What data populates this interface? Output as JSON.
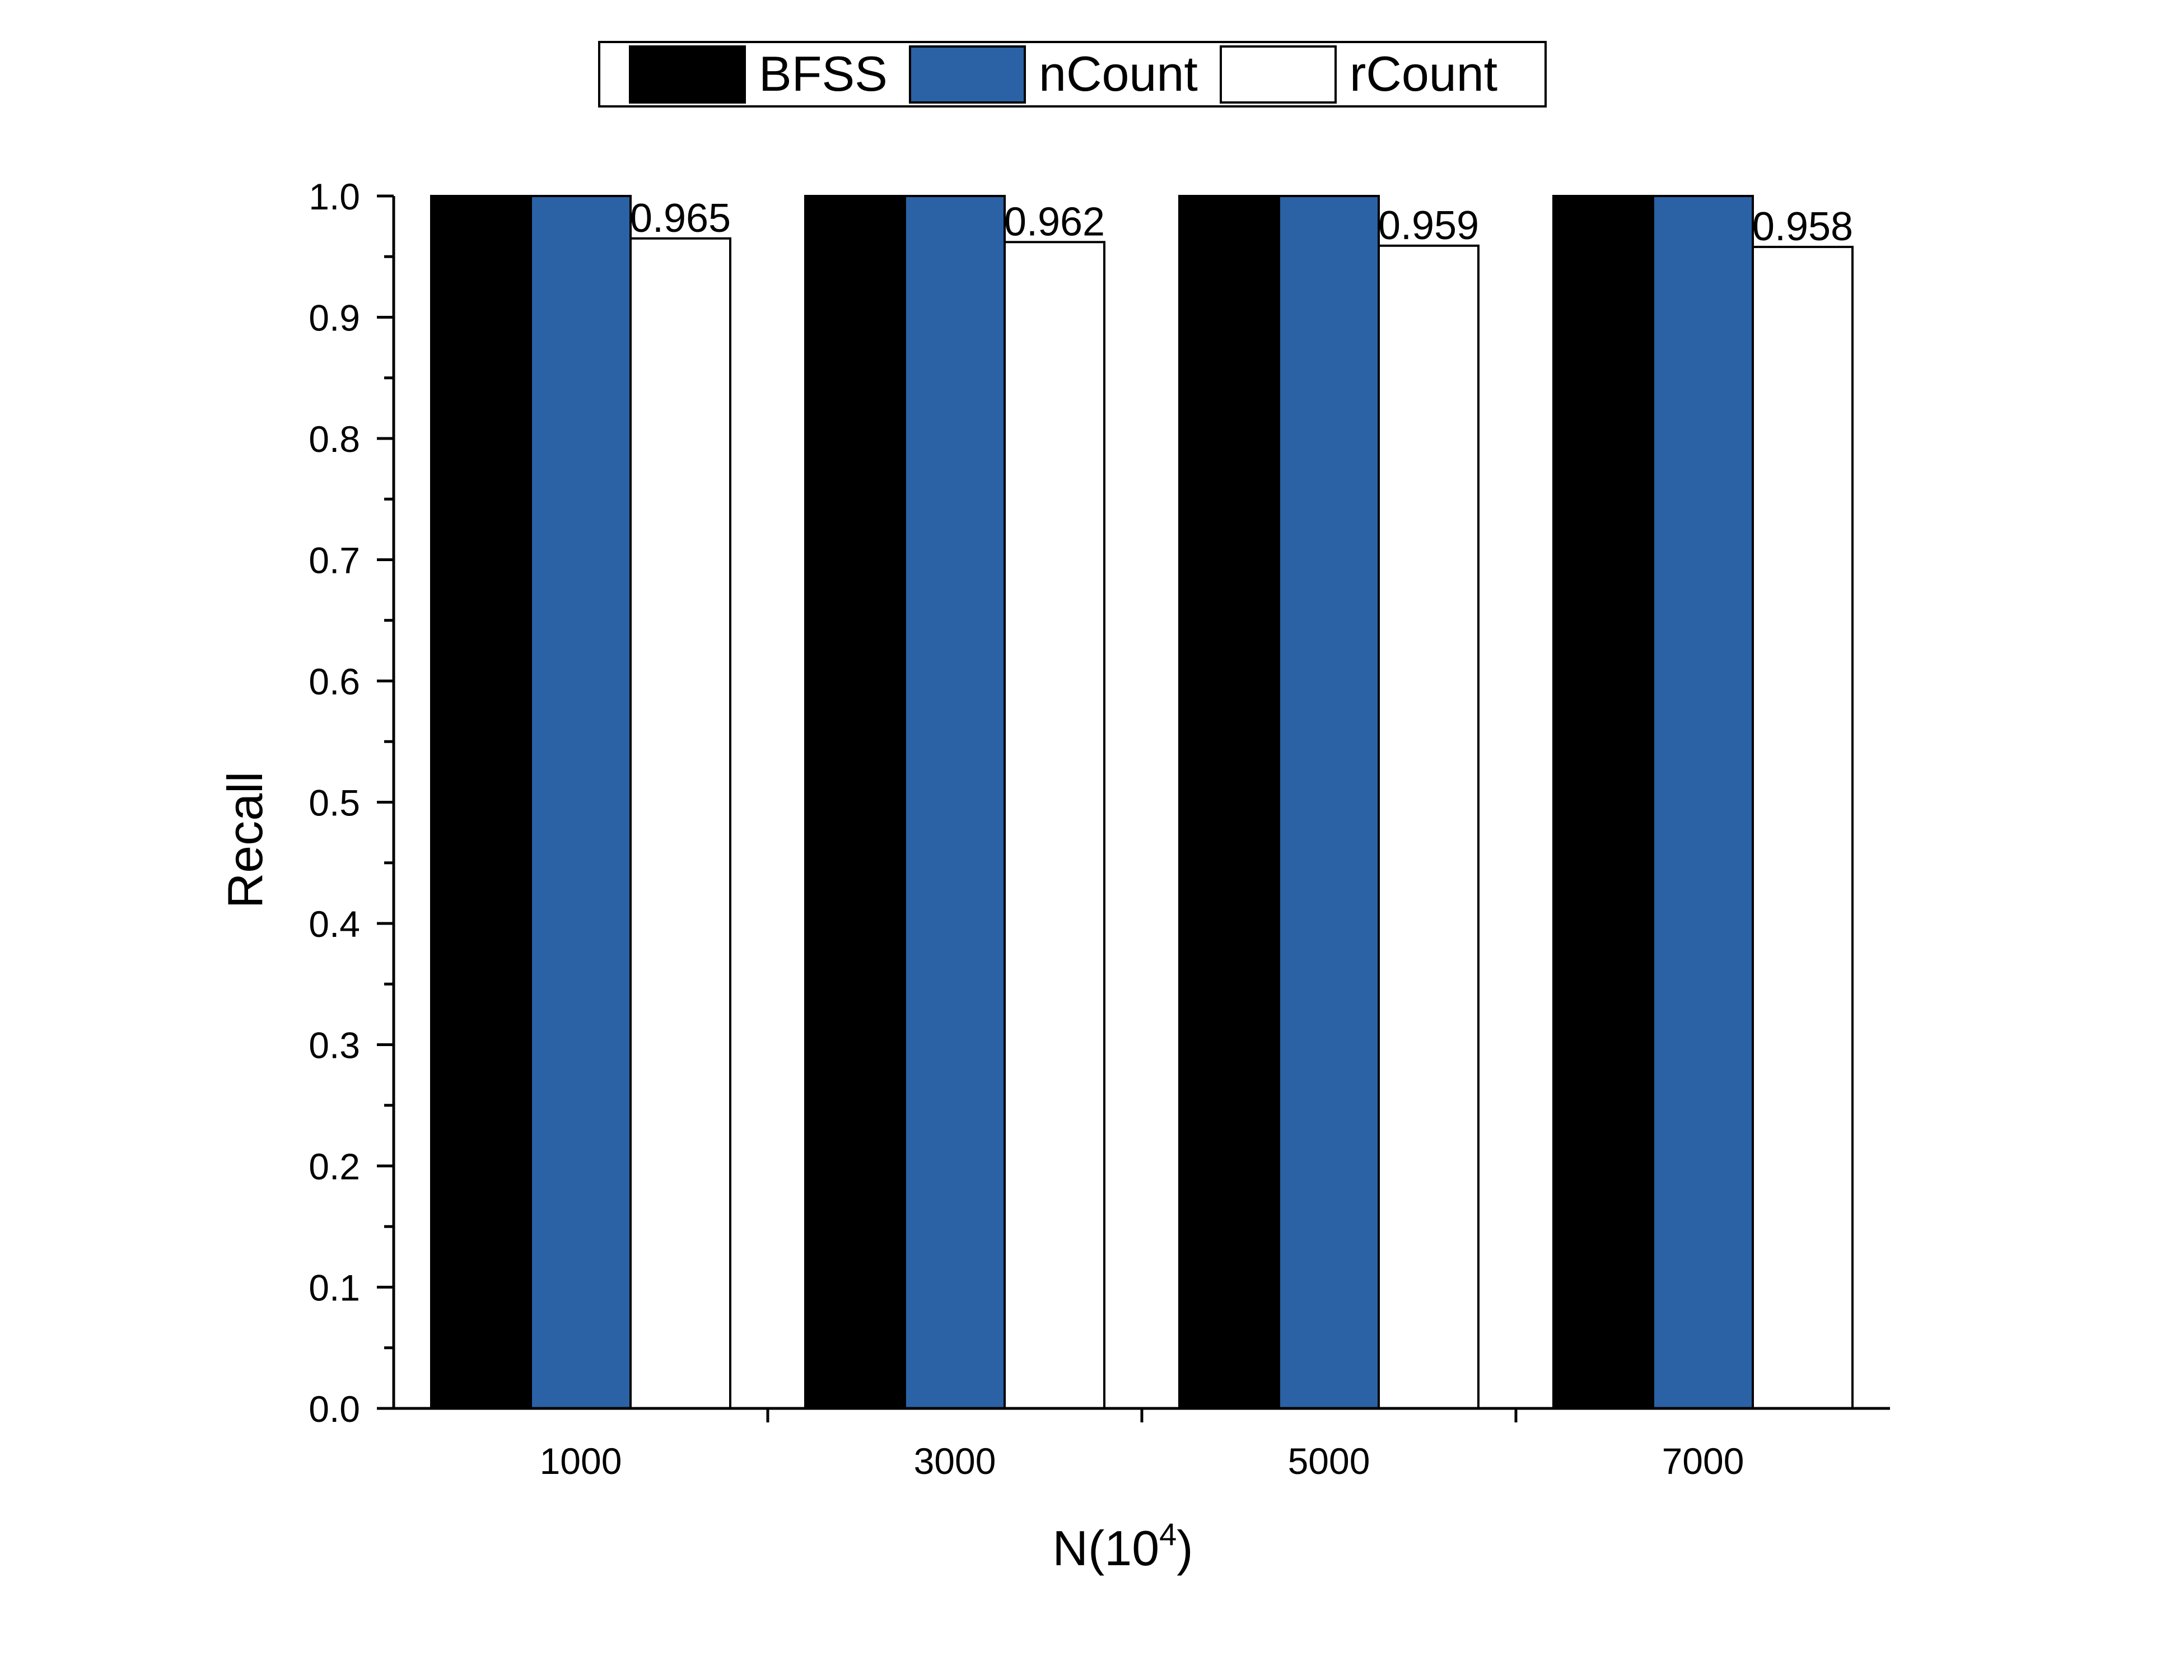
{
  "chart_data": {
    "type": "bar",
    "categories": [
      "1000",
      "3000",
      "5000",
      "7000"
    ],
    "series": [
      {
        "name": "BFSS",
        "values": [
          1.0,
          1.0,
          1.0,
          1.0
        ],
        "color": "#000000",
        "labels": [
          "",
          "",
          "",
          ""
        ]
      },
      {
        "name": "nCount",
        "values": [
          1.0,
          1.0,
          1.0,
          1.0
        ],
        "color": "#2a62a5",
        "labels": [
          "",
          "",
          "",
          ""
        ]
      },
      {
        "name": "rCount",
        "values": [
          0.965,
          0.962,
          0.959,
          0.958
        ],
        "color": "#ffffff",
        "labels": [
          "0.965",
          "0.962",
          "0.959",
          "0.958"
        ]
      }
    ],
    "title": "",
    "xlabel": "N(10",
    "xlabel_superscript": "4",
    "xlabel_suffix": ")",
    "ylabel": "Recall",
    "ylim": [
      0,
      1.0
    ],
    "yticks": [
      "0.0",
      "0.1",
      "0.2",
      "0.3",
      "0.4",
      "0.5",
      "0.6",
      "0.7",
      "0.8",
      "0.9",
      "1.0"
    ],
    "grid": false,
    "legend_position": "top-center"
  }
}
